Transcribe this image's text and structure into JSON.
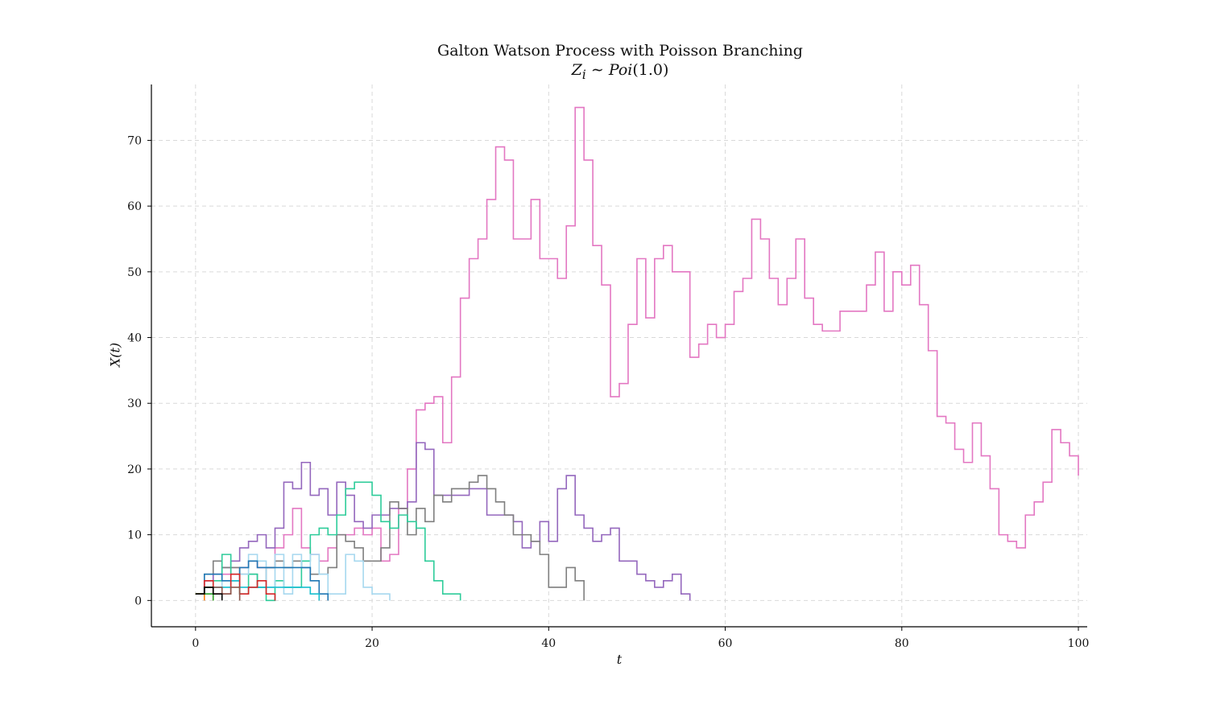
{
  "chart_data": {
    "type": "line",
    "step": "post",
    "title": "Galton Watson Process with Poisson Branching",
    "subtitle": {
      "variable": "Z",
      "subscript": "i",
      "relation": "∼",
      "dist": "Poi",
      "param": "1.0"
    },
    "xlabel": "t",
    "ylabel": "X(t)",
    "xlim": [
      -5,
      101
    ],
    "ylim": [
      -4,
      78.5
    ],
    "xticks": [
      0,
      20,
      40,
      60,
      80,
      100
    ],
    "yticks": [
      0,
      10,
      20,
      30,
      40,
      50,
      60,
      70
    ],
    "grid": true,
    "series": [
      {
        "color": "#e377c2",
        "x0": 0,
        "values": [
          1,
          3,
          4,
          4,
          5,
          5,
          6,
          5,
          5,
          8,
          10,
          14,
          8,
          7,
          6,
          8,
          10,
          10,
          11,
          10,
          11,
          6,
          7,
          14,
          20,
          29,
          30,
          31,
          24,
          34,
          46,
          52,
          55,
          61,
          69,
          67,
          55,
          55,
          61,
          52,
          52,
          49,
          57,
          75,
          67,
          54,
          48,
          31,
          33,
          42,
          52,
          43,
          52,
          54,
          50,
          50,
          37,
          39,
          42,
          40,
          42,
          47,
          49,
          58,
          55,
          49,
          45,
          49,
          55,
          46,
          42,
          41,
          41,
          44,
          44,
          44,
          48,
          53,
          44,
          50,
          48,
          51,
          45,
          38,
          28,
          27,
          23,
          21,
          27,
          22,
          17,
          10,
          9,
          8,
          13,
          15,
          18,
          26,
          24,
          22,
          19
        ]
      },
      {
        "color": "#9467bd",
        "x0": 0,
        "values": [
          1,
          3,
          4,
          5,
          6,
          8,
          9,
          10,
          8,
          11,
          18,
          17,
          21,
          16,
          17,
          13,
          18,
          16,
          12,
          11,
          13,
          13,
          14,
          14,
          15,
          24,
          23,
          16,
          16,
          16,
          16,
          17,
          17,
          13,
          13,
          13,
          12,
          8,
          9,
          12,
          9,
          17,
          19,
          13,
          11,
          9,
          10,
          11,
          6,
          6,
          4,
          3,
          2,
          3,
          4,
          1,
          0
        ]
      },
      {
        "color": "#7f7f7f",
        "x0": 0,
        "values": [
          1,
          4,
          6,
          5,
          5,
          4,
          4,
          2,
          5,
          6,
          5,
          6,
          5,
          4,
          4,
          5,
          10,
          9,
          8,
          6,
          6,
          8,
          15,
          14,
          10,
          14,
          12,
          16,
          15,
          17,
          17,
          18,
          19,
          17,
          15,
          13,
          10,
          10,
          9,
          7,
          2,
          2,
          5,
          3,
          0
        ]
      },
      {
        "color": "#2ecc9a",
        "x0": 0,
        "values": [
          1,
          2,
          3,
          7,
          4,
          1,
          4,
          2,
          0,
          3,
          2,
          2,
          6,
          10,
          11,
          10,
          13,
          17,
          18,
          18,
          16,
          12,
          11,
          13,
          12,
          11,
          6,
          3,
          1,
          1,
          0
        ]
      },
      {
        "color": "#a6d8ef",
        "x0": 0,
        "values": [
          1,
          1,
          2,
          3,
          3,
          4,
          7,
          6,
          2,
          7,
          1,
          7,
          5,
          7,
          4,
          1,
          1,
          7,
          6,
          2,
          1,
          1,
          0
        ]
      },
      {
        "color": "#1f77b4",
        "x0": 0,
        "values": [
          1,
          4,
          4,
          3,
          3,
          5,
          6,
          5,
          5,
          5,
          5,
          5,
          5,
          3,
          1,
          0
        ]
      },
      {
        "color": "#17becf",
        "x0": 0,
        "values": [
          1,
          2,
          2,
          2,
          3,
          2,
          2,
          2,
          2,
          2,
          2,
          2,
          2,
          1,
          0
        ]
      },
      {
        "color": "#d62728",
        "x0": 0,
        "values": [
          1,
          3,
          1,
          1,
          4,
          1,
          2,
          3,
          1,
          0
        ]
      },
      {
        "color": "#8c564b",
        "x0": 0,
        "values": [
          1,
          2,
          2,
          1,
          2,
          0
        ]
      },
      {
        "color": "#bcbd22",
        "x0": 0,
        "values": [
          1,
          2,
          0
        ]
      },
      {
        "color": "#ff7f0e",
        "x0": 0,
        "values": [
          1,
          0
        ]
      },
      {
        "color": "#2ca02c",
        "x0": 0,
        "values": [
          1,
          1,
          0
        ]
      },
      {
        "color": "#000000",
        "x0": 0,
        "values": [
          1,
          2,
          1,
          0
        ]
      }
    ]
  }
}
